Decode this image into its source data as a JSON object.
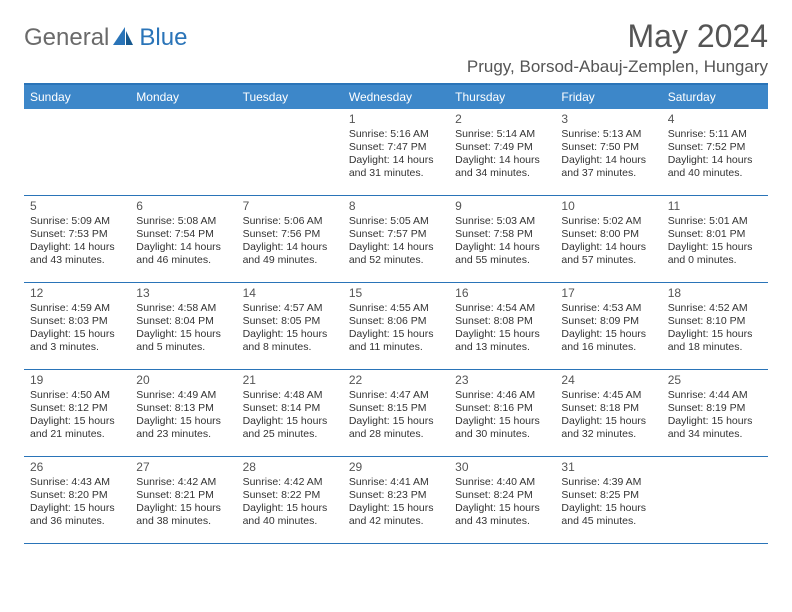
{
  "brand": {
    "general": "General",
    "blue": "Blue"
  },
  "title": "May 2024",
  "location": "Prugy, Borsod-Abauj-Zemplen, Hungary",
  "colors": {
    "accent": "#2a74b8",
    "header_bg": "#3d87c9",
    "header_text": "#ffffff",
    "body_text": "#333333",
    "muted_text": "#555555",
    "background": "#ffffff"
  },
  "weekdays": [
    "Sunday",
    "Monday",
    "Tuesday",
    "Wednesday",
    "Thursday",
    "Friday",
    "Saturday"
  ],
  "weeks": [
    [
      null,
      null,
      null,
      {
        "n": "1",
        "sr": "Sunrise: 5:16 AM",
        "ss": "Sunset: 7:47 PM",
        "d1": "Daylight: 14 hours",
        "d2": "and 31 minutes."
      },
      {
        "n": "2",
        "sr": "Sunrise: 5:14 AM",
        "ss": "Sunset: 7:49 PM",
        "d1": "Daylight: 14 hours",
        "d2": "and 34 minutes."
      },
      {
        "n": "3",
        "sr": "Sunrise: 5:13 AM",
        "ss": "Sunset: 7:50 PM",
        "d1": "Daylight: 14 hours",
        "d2": "and 37 minutes."
      },
      {
        "n": "4",
        "sr": "Sunrise: 5:11 AM",
        "ss": "Sunset: 7:52 PM",
        "d1": "Daylight: 14 hours",
        "d2": "and 40 minutes."
      }
    ],
    [
      {
        "n": "5",
        "sr": "Sunrise: 5:09 AM",
        "ss": "Sunset: 7:53 PM",
        "d1": "Daylight: 14 hours",
        "d2": "and 43 minutes."
      },
      {
        "n": "6",
        "sr": "Sunrise: 5:08 AM",
        "ss": "Sunset: 7:54 PM",
        "d1": "Daylight: 14 hours",
        "d2": "and 46 minutes."
      },
      {
        "n": "7",
        "sr": "Sunrise: 5:06 AM",
        "ss": "Sunset: 7:56 PM",
        "d1": "Daylight: 14 hours",
        "d2": "and 49 minutes."
      },
      {
        "n": "8",
        "sr": "Sunrise: 5:05 AM",
        "ss": "Sunset: 7:57 PM",
        "d1": "Daylight: 14 hours",
        "d2": "and 52 minutes."
      },
      {
        "n": "9",
        "sr": "Sunrise: 5:03 AM",
        "ss": "Sunset: 7:58 PM",
        "d1": "Daylight: 14 hours",
        "d2": "and 55 minutes."
      },
      {
        "n": "10",
        "sr": "Sunrise: 5:02 AM",
        "ss": "Sunset: 8:00 PM",
        "d1": "Daylight: 14 hours",
        "d2": "and 57 minutes."
      },
      {
        "n": "11",
        "sr": "Sunrise: 5:01 AM",
        "ss": "Sunset: 8:01 PM",
        "d1": "Daylight: 15 hours",
        "d2": "and 0 minutes."
      }
    ],
    [
      {
        "n": "12",
        "sr": "Sunrise: 4:59 AM",
        "ss": "Sunset: 8:03 PM",
        "d1": "Daylight: 15 hours",
        "d2": "and 3 minutes."
      },
      {
        "n": "13",
        "sr": "Sunrise: 4:58 AM",
        "ss": "Sunset: 8:04 PM",
        "d1": "Daylight: 15 hours",
        "d2": "and 5 minutes."
      },
      {
        "n": "14",
        "sr": "Sunrise: 4:57 AM",
        "ss": "Sunset: 8:05 PM",
        "d1": "Daylight: 15 hours",
        "d2": "and 8 minutes."
      },
      {
        "n": "15",
        "sr": "Sunrise: 4:55 AM",
        "ss": "Sunset: 8:06 PM",
        "d1": "Daylight: 15 hours",
        "d2": "and 11 minutes."
      },
      {
        "n": "16",
        "sr": "Sunrise: 4:54 AM",
        "ss": "Sunset: 8:08 PM",
        "d1": "Daylight: 15 hours",
        "d2": "and 13 minutes."
      },
      {
        "n": "17",
        "sr": "Sunrise: 4:53 AM",
        "ss": "Sunset: 8:09 PM",
        "d1": "Daylight: 15 hours",
        "d2": "and 16 minutes."
      },
      {
        "n": "18",
        "sr": "Sunrise: 4:52 AM",
        "ss": "Sunset: 8:10 PM",
        "d1": "Daylight: 15 hours",
        "d2": "and 18 minutes."
      }
    ],
    [
      {
        "n": "19",
        "sr": "Sunrise: 4:50 AM",
        "ss": "Sunset: 8:12 PM",
        "d1": "Daylight: 15 hours",
        "d2": "and 21 minutes."
      },
      {
        "n": "20",
        "sr": "Sunrise: 4:49 AM",
        "ss": "Sunset: 8:13 PM",
        "d1": "Daylight: 15 hours",
        "d2": "and 23 minutes."
      },
      {
        "n": "21",
        "sr": "Sunrise: 4:48 AM",
        "ss": "Sunset: 8:14 PM",
        "d1": "Daylight: 15 hours",
        "d2": "and 25 minutes."
      },
      {
        "n": "22",
        "sr": "Sunrise: 4:47 AM",
        "ss": "Sunset: 8:15 PM",
        "d1": "Daylight: 15 hours",
        "d2": "and 28 minutes."
      },
      {
        "n": "23",
        "sr": "Sunrise: 4:46 AM",
        "ss": "Sunset: 8:16 PM",
        "d1": "Daylight: 15 hours",
        "d2": "and 30 minutes."
      },
      {
        "n": "24",
        "sr": "Sunrise: 4:45 AM",
        "ss": "Sunset: 8:18 PM",
        "d1": "Daylight: 15 hours",
        "d2": "and 32 minutes."
      },
      {
        "n": "25",
        "sr": "Sunrise: 4:44 AM",
        "ss": "Sunset: 8:19 PM",
        "d1": "Daylight: 15 hours",
        "d2": "and 34 minutes."
      }
    ],
    [
      {
        "n": "26",
        "sr": "Sunrise: 4:43 AM",
        "ss": "Sunset: 8:20 PM",
        "d1": "Daylight: 15 hours",
        "d2": "and 36 minutes."
      },
      {
        "n": "27",
        "sr": "Sunrise: 4:42 AM",
        "ss": "Sunset: 8:21 PM",
        "d1": "Daylight: 15 hours",
        "d2": "and 38 minutes."
      },
      {
        "n": "28",
        "sr": "Sunrise: 4:42 AM",
        "ss": "Sunset: 8:22 PM",
        "d1": "Daylight: 15 hours",
        "d2": "and 40 minutes."
      },
      {
        "n": "29",
        "sr": "Sunrise: 4:41 AM",
        "ss": "Sunset: 8:23 PM",
        "d1": "Daylight: 15 hours",
        "d2": "and 42 minutes."
      },
      {
        "n": "30",
        "sr": "Sunrise: 4:40 AM",
        "ss": "Sunset: 8:24 PM",
        "d1": "Daylight: 15 hours",
        "d2": "and 43 minutes."
      },
      {
        "n": "31",
        "sr": "Sunrise: 4:39 AM",
        "ss": "Sunset: 8:25 PM",
        "d1": "Daylight: 15 hours",
        "d2": "and 45 minutes."
      },
      null
    ]
  ]
}
